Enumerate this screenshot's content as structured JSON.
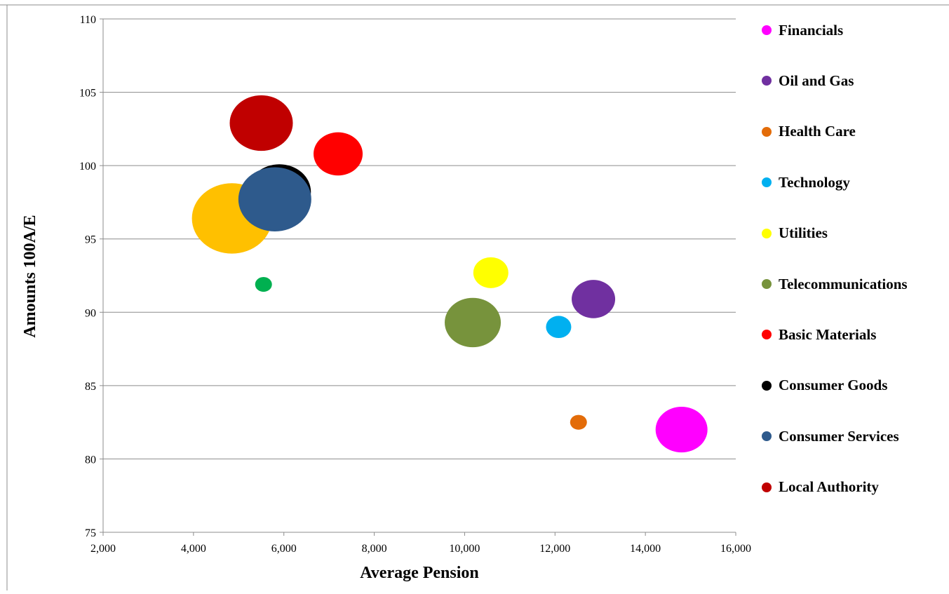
{
  "chart_data": {
    "type": "scatter",
    "subtype": "bubble",
    "title": "",
    "xlabel": "Average Pension",
    "ylabel": "Amounts 100A/E",
    "xlim": [
      2000,
      16000
    ],
    "ylim": [
      75,
      110
    ],
    "x_ticks": [
      "2,000",
      "4,000",
      "6,000",
      "8,000",
      "10,000",
      "12,000",
      "14,000",
      "16,000"
    ],
    "y_ticks": [
      "75",
      "80",
      "85",
      "90",
      "95",
      "100",
      "105",
      "110"
    ],
    "grid": "horizontal",
    "legend_position": "right",
    "series": [
      {
        "name": "Financials",
        "color": "#FF00FF",
        "x": 14800,
        "y": 82.0,
        "size": 37
      },
      {
        "name": "Oil and Gas",
        "color": "#7030A0",
        "x": 12850,
        "y": 90.9,
        "size": 31
      },
      {
        "name": "Health Care",
        "color": "#E36C09",
        "x": 12520,
        "y": 82.5,
        "size": 12
      },
      {
        "name": "Technology",
        "color": "#00B0F0",
        "x": 12080,
        "y": 89.0,
        "size": 18
      },
      {
        "name": "Utilities",
        "color": "#FFFF00",
        "x": 10580,
        "y": 92.7,
        "size": 25
      },
      {
        "name": "Telecommunications",
        "color": "#77933C",
        "x": 10180,
        "y": 89.3,
        "size": 40
      },
      {
        "name": "Basic Materials",
        "color": "#FF0000",
        "x": 7200,
        "y": 100.8,
        "size": 35
      },
      {
        "name": "Consumer Goods",
        "color": "#000000",
        "x": 5900,
        "y": 98.2,
        "size": 45
      },
      {
        "name": "Consumer Services",
        "color": "#2E5A8C",
        "x": 5800,
        "y": 97.7,
        "size": 52
      },
      {
        "name": "Local Authority",
        "color": "#C00000",
        "x": 5500,
        "y": 102.9,
        "size": 45
      },
      {
        "name": "",
        "color": "#FFC000",
        "x": 4850,
        "y": 96.4,
        "size": 57
      },
      {
        "name": "",
        "color": "#00B050",
        "x": 5550,
        "y": 91.9,
        "size": 12
      }
    ]
  },
  "legend": [
    {
      "label": "Financials",
      "color": "#FF00FF"
    },
    {
      "label": "Oil and Gas",
      "color": "#7030A0"
    },
    {
      "label": "Health Care",
      "color": "#E36C09"
    },
    {
      "label": "Technology",
      "color": "#00B0F0"
    },
    {
      "label": "Utilities",
      "color": "#FFFF00"
    },
    {
      "label": "Telecommunications",
      "color": "#77933C"
    },
    {
      "label": "Basic Materials",
      "color": "#FF0000"
    },
    {
      "label": "Consumer Goods",
      "color": "#000000"
    },
    {
      "label": "Consumer Services",
      "color": "#2E5A8C"
    },
    {
      "label": "Local Authority",
      "color": "#C00000"
    }
  ]
}
